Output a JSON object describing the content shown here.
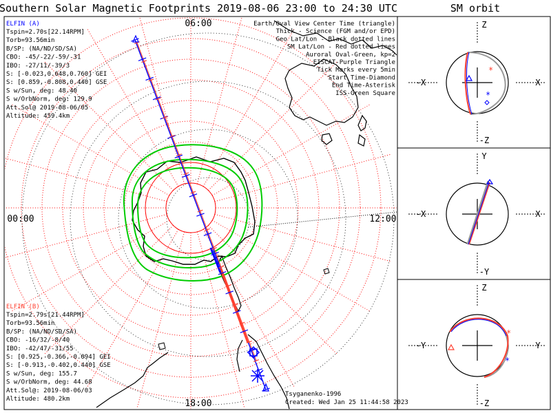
{
  "title": "Southern Solar Magnetic Footprints 2019-08-06 23:00 to 24:30 UTC",
  "orbit_title": "SM orbit",
  "colors": {
    "probe_a": "#0000ff",
    "probe_b": "#ff4030",
    "oval": "#00cc00",
    "land": "#000000",
    "sm_grid": "#ff0000",
    "geo_grid": "#000000",
    "eiscat": "#cc66cc",
    "orbit_trace": "#999999"
  },
  "probe_a": {
    "label": "ELFIN (A)",
    "lines": [
      "Tspin=2.70s[22.14RPM]",
      "Torb=93.56min",
      "B/SP: (NA/ND/SD/SA)",
      "CBO: -45/-22/-59/-31",
      "IBO: -27/11/-39/3",
      "S: [-0.023,0.648,0.760] GEI",
      "S: [0.859,-0.808,0.440] GSE",
      "S w/Sun, deg: 48.40",
      "S w/OrbNorm, deg: 129.9",
      "Att.Sol@ 2019-08-06/05",
      "Altitude: 459.4km"
    ]
  },
  "probe_b": {
    "label": "ELFIN (B)",
    "lines": [
      "Tspin=2.79s[21.44RPM]",
      "Torb=93.56min",
      "B/SP: (NA/ND/SD/SA)",
      "CBO: -16/32/-8/40",
      "IBO: -42/47/-31/55",
      "S: [0.925,-0.366,-0.094] GEI",
      "S: [-0.913,-0.402,0.440] GSE",
      "S w/Sun, deg: 155.7",
      "S w/OrbNorm, deg: 44.68",
      "Att.Sol@: 2019-08-06/03",
      "Altitude: 480.2km"
    ]
  },
  "legend": [
    {
      "text": "Earth/Oval View Center Time (triangle)",
      "color": "#000000"
    },
    {
      "text": "Thick - Science (FGM and/or EPD)",
      "color": "#000000"
    },
    {
      "text": "Geo Lat/Lon - Black dotted lines",
      "color": "#000000"
    },
    {
      "text": "SM Lat/Lon - Red dotted lines",
      "color": "#ff0000"
    },
    {
      "text": "Auroral Oval-Green, kp=2",
      "color": "#00cc00"
    },
    {
      "text": "EISCAT-Purple Triangle",
      "color": "#cc66cc"
    },
    {
      "text": "Tick Marks every 5min",
      "color": "#000000"
    },
    {
      "text": "Start Time-Diamond",
      "color": "#000000"
    },
    {
      "text": "End Time-Asterisk",
      "color": "#000000"
    },
    {
      "text": "ISS-Green Square",
      "color": "#00cc00"
    }
  ],
  "footer": {
    "credit": "Tsyganenko-1996",
    "created": "Created: Wed Jan 25 11:44:58 2023"
  },
  "chart_data": [
    {
      "type": "polar-map",
      "projection": "southern magnetic pole, SM coordinates",
      "mlt_labels": [
        "06:00",
        "12:00",
        "18:00",
        "00:00"
      ],
      "grid": true,
      "probe_a_track": [
        [
          -70.5,
          4.5
        ],
        [
          -66,
          21
        ],
        [
          -59,
          83
        ],
        [
          -62,
          130
        ],
        [
          -70.5,
          155
        ],
        [
          -56,
          165
        ],
        [
          -50,
          168
        ],
        [
          -47,
          169
        ]
      ],
      "probe_b_track": [
        [
          -67,
          17
        ],
        [
          -57,
          167
        ],
        [
          -50,
          168
        ]
      ],
      "auroral_oval_kp": 2
    },
    {
      "type": "orbit",
      "panels": [
        {
          "plane": "X-Z",
          "labels": [
            "Z",
            "-X",
            "X",
            "-Z"
          ]
        },
        {
          "plane": "X-Y",
          "labels": [
            "Y",
            "-X",
            "X",
            "-Y"
          ]
        },
        {
          "plane": "Y-Z",
          "labels": [
            "Z",
            "-Y",
            "Y",
            "-Z"
          ]
        }
      ]
    }
  ]
}
